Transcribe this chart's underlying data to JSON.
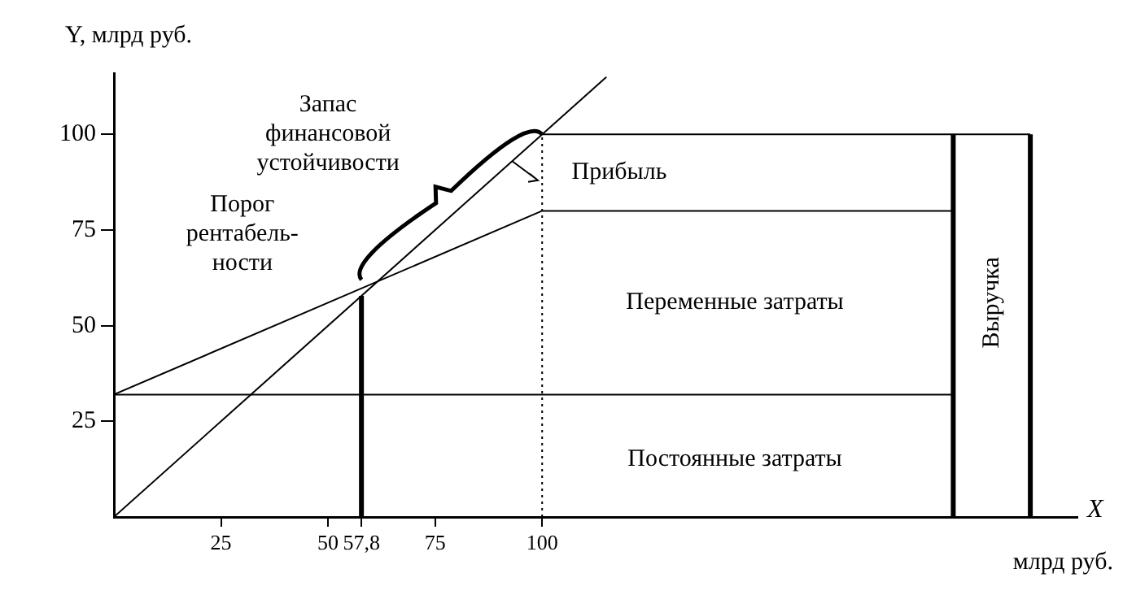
{
  "chart_data": {
    "type": "line",
    "ylabel": "Y, млрд руб.",
    "xlabel": "X",
    "xlim": [
      0,
      225
    ],
    "ylim": [
      0,
      116
    ],
    "xticks": [
      25,
      50,
      {
        "value": 57.8,
        "label": "57,8"
      },
      75,
      100
    ],
    "yticks": [
      25,
      50,
      75,
      100
    ],
    "grid": false,
    "legend": false,
    "marker": "none",
    "series": [
      {
        "color": "#000000",
        "x": [
          0,
          115
        ],
        "values": [
          0,
          115
        ]
      },
      {
        "color": "#000000",
        "x": [
          0,
          100,
          196
        ],
        "values": [
          32,
          80,
          80
        ]
      },
      {
        "color": "#000000",
        "x": [
          0,
          196
        ],
        "values": [
          32,
          32
        ]
      },
      {
        "color": "#000000",
        "x": [
          100,
          214
        ],
        "values": [
          100,
          100
        ]
      },
      {
        "color": "#000000",
        "x": [
          57.8,
          57.8
        ],
        "values": [
          0,
          57.8
        ]
      },
      {
        "color": "#000000",
        "x": [
          196,
          196
        ],
        "values": [
          0,
          100
        ]
      },
      {
        "color": "#000000",
        "x": [
          214,
          214
        ],
        "values": [
          0,
          100
        ]
      },
      {
        "color": "#000000",
        "x": [
          100,
          100
        ],
        "values": [
          0,
          100
        ],
        "line_style": "dotted"
      }
    ],
    "annotations": [
      "Запас\nфинансовой\nустойчивости",
      "Порог\nрентабель-\nности",
      "Прибыль",
      "Переменные затраты",
      "Постоянные затраты",
      "Выручка",
      "млрд руб."
    ]
  }
}
